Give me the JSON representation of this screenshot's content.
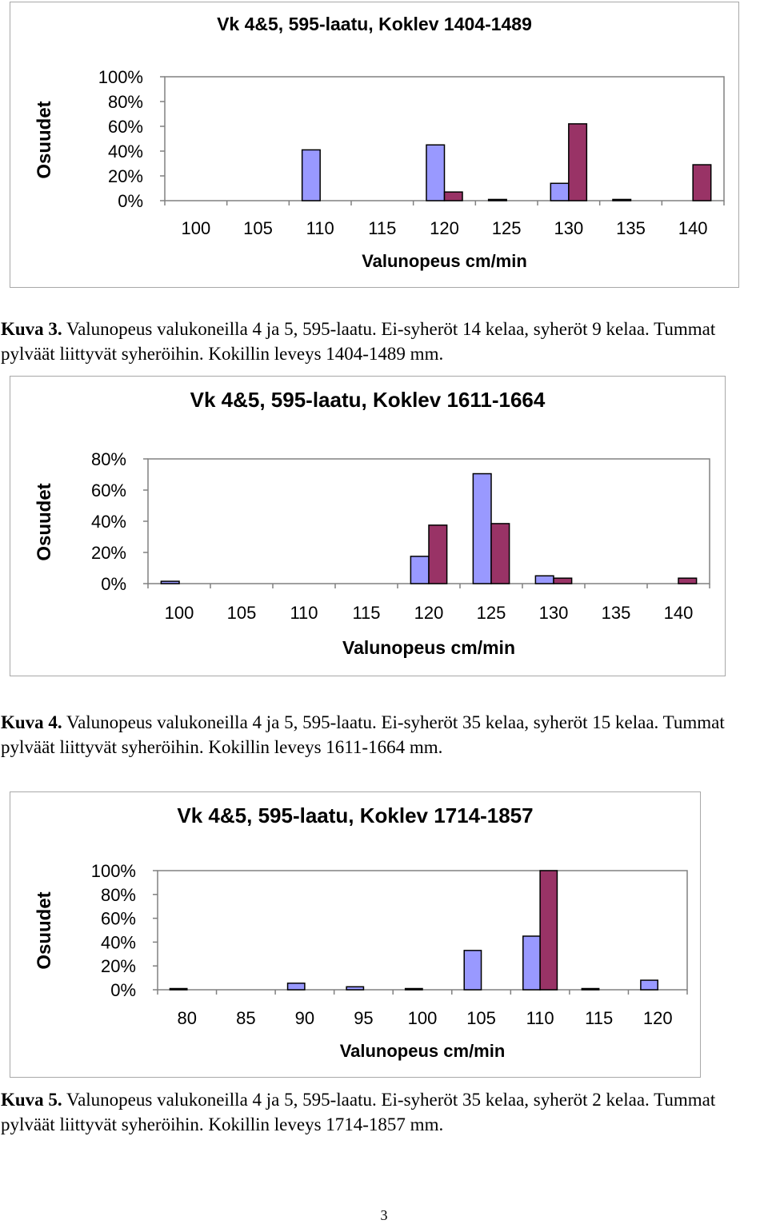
{
  "colors": {
    "light_series": "#9999ff",
    "dark_series": "#993366",
    "axis": "#808080",
    "border": "#a8a8a8"
  },
  "chart_data": [
    {
      "type": "bar",
      "title": "Vk 4&5, 595-laatu, Koklev 1404-1489",
      "xlabel": "Valunopeus cm/min",
      "ylabel": "Osuudet",
      "categories": [
        "100",
        "105",
        "110",
        "115",
        "120",
        "125",
        "130",
        "135",
        "140"
      ],
      "yticks": [
        "0%",
        "20%",
        "40%",
        "60%",
        "80%",
        "100%"
      ],
      "ylim": [
        0,
        100
      ],
      "grid": false,
      "series": [
        {
          "values": [
            0,
            0,
            41,
            0,
            45,
            1,
            14,
            1,
            0
          ]
        },
        {
          "values": [
            0,
            0,
            0,
            0,
            7,
            0,
            62,
            0,
            29
          ]
        }
      ]
    },
    {
      "type": "bar",
      "title": "Vk 4&5, 595-laatu, Koklev 1611-1664",
      "xlabel": "Valunopeus cm/min",
      "ylabel": "Osuudet",
      "categories": [
        "100",
        "105",
        "110",
        "115",
        "120",
        "125",
        "130",
        "135",
        "140"
      ],
      "yticks": [
        "0%",
        "20%",
        "40%",
        "60%",
        "80%"
      ],
      "ylim": [
        0,
        80
      ],
      "grid": false,
      "series": [
        {
          "values": [
            1.5,
            0,
            0,
            0,
            17.5,
            70.5,
            5,
            0,
            0
          ]
        },
        {
          "values": [
            0,
            0,
            0,
            0,
            37.5,
            38.5,
            3.5,
            0,
            3.5
          ]
        }
      ]
    },
    {
      "type": "bar",
      "title": "Vk 4&5, 595-laatu, Koklev 1714-1857",
      "xlabel": "Valunopeus cm/min",
      "ylabel": "Osuudet",
      "categories": [
        "80",
        "85",
        "90",
        "95",
        "100",
        "105",
        "110",
        "115",
        "120"
      ],
      "yticks": [
        "0%",
        "20%",
        "40%",
        "60%",
        "80%",
        "100%"
      ],
      "ylim": [
        0,
        100
      ],
      "grid": false,
      "series": [
        {
          "values": [
            1,
            0,
            5.5,
            2.5,
            1,
            33,
            45,
            1,
            8
          ]
        },
        {
          "values": [
            0,
            0,
            0,
            0,
            0,
            0,
            100,
            0,
            0
          ]
        }
      ]
    }
  ],
  "captions": [
    {
      "label": "Kuva 3.",
      "text": " Valunopeus valukoneilla 4 ja 5, 595-laatu. Ei-syheröt 14 kelaa, syheröt 9 kelaa. Tummat pylväät liittyvät syheröihin. Kokillin leveys 1404-1489 mm."
    },
    {
      "label": "Kuva 4.",
      "text": " Valunopeus valukoneilla 4 ja 5, 595-laatu. Ei-syheröt 35 kelaa, syheröt 15 kelaa. Tummat pylväät liittyvät syheröihin. Kokillin leveys 1611-1664 mm."
    },
    {
      "label": "Kuva 5.",
      "text": " Valunopeus valukoneilla 4 ja 5, 595-laatu. Ei-syheröt 35 kelaa, syheröt 2 kelaa. Tummat pylväät liittyvät syheröihin. Kokillin leveys 1714-1857 mm."
    }
  ],
  "page_number": "3"
}
